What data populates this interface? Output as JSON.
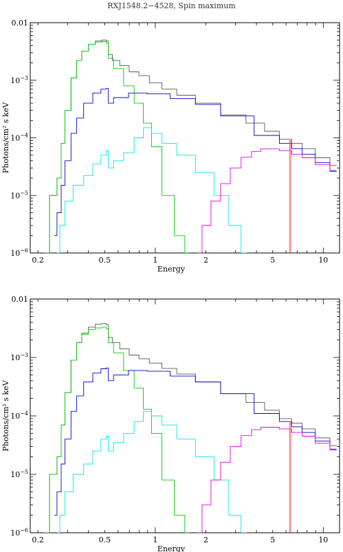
{
  "figure": {
    "title": "RXJ1548.2−4528, Spin maximum"
  },
  "series_colors": {
    "total": "#555555",
    "soft_bb": "#00cc00",
    "absorbed_comp": "#0000cc",
    "cyan_comp": "#00e5ee",
    "hard_comp": "#dd00dd",
    "iron_line": "#ff4444"
  },
  "chart_data": [
    {
      "type": "line",
      "title": "",
      "xlabel": "Energy",
      "ylabel": "Photons/cm² s keV",
      "xscale": "log",
      "yscale": "log",
      "xlim": [
        0.18,
        12.5
      ],
      "ylim": [
        1e-06,
        0.01
      ],
      "x_ticks": [
        {
          "value": 0.2,
          "label": "0.2"
        },
        {
          "value": 0.5,
          "label": "0.5"
        },
        {
          "value": 1,
          "label": "1"
        },
        {
          "value": 2,
          "label": "2"
        },
        {
          "value": 5,
          "label": "5"
        },
        {
          "value": 10,
          "label": "10"
        }
      ],
      "y_ticks": [
        {
          "value": 1e-06,
          "base": "10",
          "exp": "−6"
        },
        {
          "value": 1e-05,
          "base": "10",
          "exp": "−5"
        },
        {
          "value": 0.0001,
          "base": "10",
          "exp": "−4"
        },
        {
          "value": 0.001,
          "base": "10",
          "exp": "−3"
        },
        {
          "value": 0.01,
          "base": "0.01",
          "exp": ""
        }
      ],
      "series": [
        {
          "key": "total",
          "x": [
            0.22,
            0.25,
            0.27,
            0.28,
            0.3,
            0.33,
            0.35,
            0.38,
            0.42,
            0.46,
            0.5,
            0.52,
            0.53,
            0.58,
            0.65,
            0.75,
            0.85,
            1.0,
            1.2,
            1.5,
            2.0,
            3.0,
            4.0,
            5.0,
            6.0,
            7.0,
            8.0,
            10.0,
            12.0
          ],
          "y": [
            1e-06,
            1e-05,
            2e-05,
            8e-05,
            0.0003,
            0.0011,
            0.0022,
            0.0032,
            0.0042,
            0.0048,
            0.005,
            0.0048,
            0.0028,
            0.0022,
            0.0018,
            0.0014,
            0.0012,
            0.0009,
            0.0007,
            0.00055,
            0.0004,
            0.00025,
            0.00018,
            0.00013,
            9.5e-05,
            8e-05,
            6.5e-05,
            4.5e-05,
            3.3e-05
          ]
        },
        {
          "key": "soft_bb",
          "x": [
            0.22,
            0.25,
            0.27,
            0.28,
            0.3,
            0.33,
            0.35,
            0.38,
            0.42,
            0.46,
            0.5,
            0.52,
            0.53,
            0.6,
            0.7,
            0.8,
            0.9,
            1.0,
            1.2,
            1.4,
            1.6
          ],
          "y": [
            1e-06,
            1e-05,
            2e-05,
            8e-05,
            0.0003,
            0.0011,
            0.0022,
            0.0032,
            0.0042,
            0.0046,
            0.0047,
            0.0044,
            0.0024,
            0.0016,
            0.0008,
            0.0004,
            0.00018,
            7e-05,
            1e-05,
            2e-06,
            1e-06
          ]
        },
        {
          "key": "absorbed_comp",
          "x": [
            0.25,
            0.27,
            0.28,
            0.3,
            0.33,
            0.35,
            0.4,
            0.45,
            0.5,
            0.52,
            0.53,
            0.6,
            0.8,
            1.0,
            1.5,
            2.0,
            3.0,
            5.0,
            6.0,
            7.0,
            8.0,
            10.0,
            12.0
          ],
          "y": [
            2e-06,
            5e-06,
            1.5e-05,
            4e-05,
            0.00012,
            0.00022,
            0.0004,
            0.0006,
            0.0007,
            0.00072,
            0.0004,
            0.0005,
            0.0006,
            0.00058,
            0.00048,
            0.00038,
            0.00024,
            0.00011,
            8e-05,
            6.5e-05,
            5.2e-05,
            3.7e-05,
            2.7e-05
          ]
        },
        {
          "key": "cyan_comp",
          "x": [
            0.26,
            0.28,
            0.3,
            0.35,
            0.4,
            0.45,
            0.5,
            0.52,
            0.53,
            0.6,
            0.7,
            0.8,
            0.9,
            1.0,
            1.2,
            1.5,
            2.0,
            2.5,
            3.0,
            3.5
          ],
          "y": [
            1e-06,
            3e-06,
            8e-06,
            1.5e-05,
            2.2e-05,
            3.5e-05,
            5e-05,
            6e-05,
            3e-05,
            4e-05,
            5.5e-05,
            0.0001,
            0.00015,
            0.00012,
            8e-05,
            5e-05,
            2.5e-05,
            1e-05,
            3e-06,
            1e-06
          ]
        },
        {
          "key": "hard_comp",
          "x": [
            1.8,
            2.0,
            2.3,
            2.6,
            3.0,
            3.5,
            4.0,
            4.5,
            5.0,
            6.0,
            7.0,
            8.0,
            10.0,
            12.0
          ],
          "y": [
            1e-06,
            3e-06,
            8e-06,
            1.6e-05,
            3e-05,
            4.6e-05,
            5.8e-05,
            6.4e-05,
            6.4e-05,
            6e-05,
            5.2e-05,
            4.5e-05,
            3.4e-05,
            2.6e-05
          ]
        },
        {
          "key": "iron_line",
          "x": [
            6.3,
            6.3,
            6.4,
            6.4
          ],
          "y": [
            1e-06,
            9e-05,
            9e-05,
            1e-06
          ]
        }
      ]
    },
    {
      "type": "line",
      "title": "",
      "xlabel": "Energy",
      "ylabel": "Photons/cm² s keV",
      "xscale": "log",
      "yscale": "log",
      "xlim": [
        0.18,
        12.5
      ],
      "ylim": [
        1e-06,
        0.01
      ],
      "x_ticks": [
        {
          "value": 0.2,
          "label": "0.2"
        },
        {
          "value": 0.5,
          "label": "0.5"
        },
        {
          "value": 1,
          "label": "1"
        },
        {
          "value": 2,
          "label": "2"
        },
        {
          "value": 5,
          "label": "5"
        },
        {
          "value": 10,
          "label": "10"
        }
      ],
      "y_ticks": [
        {
          "value": 1e-06,
          "base": "10",
          "exp": "−6"
        },
        {
          "value": 1e-05,
          "base": "10",
          "exp": "−5"
        },
        {
          "value": 0.0001,
          "base": "10",
          "exp": "−4"
        },
        {
          "value": 0.001,
          "base": "10",
          "exp": "−3"
        },
        {
          "value": 0.01,
          "base": "0.01",
          "exp": ""
        }
      ],
      "series": [
        {
          "key": "total",
          "x": [
            0.22,
            0.25,
            0.27,
            0.28,
            0.3,
            0.33,
            0.35,
            0.38,
            0.42,
            0.46,
            0.5,
            0.52,
            0.53,
            0.58,
            0.65,
            0.75,
            0.85,
            1.0,
            1.2,
            1.5,
            2.0,
            3.0,
            4.0,
            5.0,
            6.0,
            7.0,
            8.0,
            10.0,
            12.0
          ],
          "y": [
            1e-06,
            1e-05,
            2e-05,
            7e-05,
            0.00025,
            0.0009,
            0.0018,
            0.0026,
            0.0033,
            0.0037,
            0.0038,
            0.0036,
            0.0022,
            0.0018,
            0.0014,
            0.0011,
            0.00095,
            0.0008,
            0.00065,
            0.00052,
            0.00038,
            0.00024,
            0.00017,
            0.000125,
            9e-05,
            7.5e-05,
            6e-05,
            4.2e-05,
            3.1e-05
          ]
        },
        {
          "key": "soft_bb",
          "x": [
            0.22,
            0.25,
            0.27,
            0.28,
            0.3,
            0.33,
            0.35,
            0.38,
            0.42,
            0.46,
            0.5,
            0.52,
            0.53,
            0.6,
            0.7,
            0.8,
            0.9,
            1.0,
            1.2,
            1.4,
            1.6
          ],
          "y": [
            1e-06,
            1e-05,
            2e-05,
            7e-05,
            0.00025,
            0.0009,
            0.0018,
            0.0025,
            0.003,
            0.0032,
            0.0033,
            0.0031,
            0.0018,
            0.0012,
            0.0006,
            0.0003,
            0.00013,
            5e-05,
            8e-06,
            2e-06,
            1e-06
          ]
        },
        {
          "key": "absorbed_comp",
          "x": [
            0.25,
            0.27,
            0.28,
            0.3,
            0.33,
            0.35,
            0.4,
            0.45,
            0.5,
            0.52,
            0.53,
            0.6,
            0.8,
            1.0,
            1.5,
            2.0,
            3.0,
            5.0,
            6.0,
            7.0,
            8.0,
            10.0,
            12.0
          ],
          "y": [
            2e-06,
            5e-06,
            1.5e-05,
            4e-05,
            0.00012,
            0.00022,
            0.00038,
            0.00054,
            0.00064,
            0.00066,
            0.0004,
            0.0005,
            0.0006,
            0.00058,
            0.00048,
            0.00038,
            0.00024,
            0.00011,
            8e-05,
            6.5e-05,
            5.2e-05,
            3.7e-05,
            2.7e-05
          ]
        },
        {
          "key": "cyan_comp",
          "x": [
            0.26,
            0.28,
            0.3,
            0.35,
            0.4,
            0.45,
            0.5,
            0.52,
            0.53,
            0.6,
            0.7,
            0.8,
            0.9,
            1.0,
            1.2,
            1.5,
            2.0,
            2.5,
            3.0,
            3.5
          ],
          "y": [
            1e-06,
            2e-06,
            5e-06,
            1e-05,
            1.5e-05,
            2.5e-05,
            4e-05,
            4.5e-05,
            2.5e-05,
            3.5e-05,
            5e-05,
            8e-05,
            0.00012,
            0.0001,
            7e-05,
            4e-05,
            2e-05,
            8e-06,
            2e-06,
            1e-06
          ]
        },
        {
          "key": "hard_comp",
          "x": [
            1.8,
            2.0,
            2.3,
            2.6,
            3.0,
            3.5,
            4.0,
            4.5,
            5.0,
            6.0,
            7.0,
            8.0,
            10.0,
            12.0
          ],
          "y": [
            1e-06,
            3e-06,
            8e-06,
            1.6e-05,
            3e-05,
            4.6e-05,
            5.8e-05,
            6.4e-05,
            6.4e-05,
            6e-05,
            5.2e-05,
            4.5e-05,
            3.4e-05,
            2.6e-05
          ]
        },
        {
          "key": "iron_line",
          "x": [
            6.3,
            6.3,
            6.4,
            6.4
          ],
          "y": [
            1e-06,
            8e-05,
            8e-05,
            1e-06
          ]
        }
      ]
    }
  ]
}
